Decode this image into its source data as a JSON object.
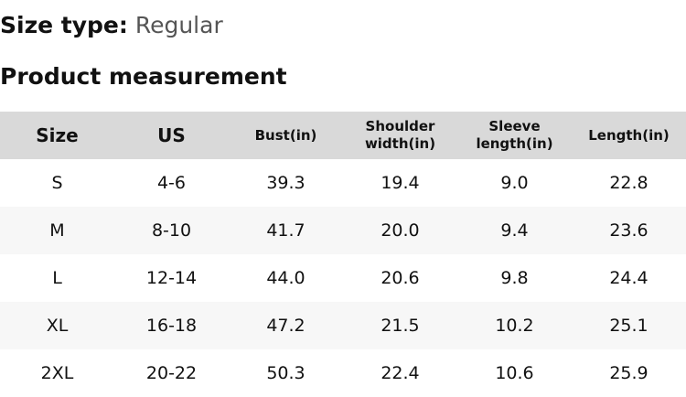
{
  "size_type": {
    "label": "Size type:",
    "value": "Regular"
  },
  "section_title": "Product measurement",
  "table": {
    "headers": [
      "Size",
      "US",
      "Bust(in)",
      "Shoulder width(in)",
      "Sleeve length(in)",
      "Length(in)"
    ],
    "rows": [
      [
        "S",
        "4-6",
        "39.3",
        "19.4",
        "9.0",
        "22.8"
      ],
      [
        "M",
        "8-10",
        "41.7",
        "20.0",
        "9.4",
        "23.6"
      ],
      [
        "L",
        "12-14",
        "44.0",
        "20.6",
        "9.8",
        "24.4"
      ],
      [
        "XL",
        "16-18",
        "47.2",
        "21.5",
        "10.2",
        "25.1"
      ],
      [
        "2XL",
        "20-22",
        "50.3",
        "22.4",
        "10.6",
        "25.9"
      ]
    ]
  }
}
